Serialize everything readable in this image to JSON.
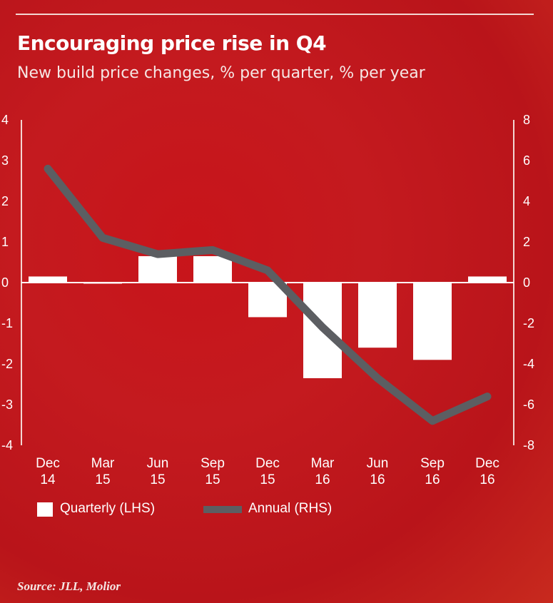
{
  "chart_data": {
    "type": "bar",
    "title": "Encouraging price rise in Q4",
    "subtitle": "New build price changes, % per quarter, % per year",
    "categories": [
      [
        "Dec",
        "14"
      ],
      [
        "Mar",
        "15"
      ],
      [
        "Jun",
        "15"
      ],
      [
        "Sep",
        "15"
      ],
      [
        "Dec",
        "15"
      ],
      [
        "Mar",
        "16"
      ],
      [
        "Jun",
        "16"
      ],
      [
        "Sep",
        "16"
      ],
      [
        "Dec",
        "16"
      ]
    ],
    "series": [
      {
        "name": "Quarterly (LHS)",
        "type": "bar",
        "axis": "left",
        "values": [
          0.15,
          0.0,
          0.65,
          0.65,
          -0.85,
          -2.35,
          -1.6,
          -1.9,
          0.15
        ]
      },
      {
        "name": "Annual (RHS)",
        "type": "line",
        "axis": "right",
        "values": [
          5.6,
          2.2,
          1.4,
          1.6,
          0.6,
          -2.2,
          -4.7,
          -6.8,
          -5.6
        ]
      }
    ],
    "y_left": {
      "range": [
        -4,
        4
      ],
      "ticks": [
        "4",
        "3",
        "2",
        "1",
        "0",
        "-1",
        "-2",
        "-3",
        "-4"
      ]
    },
    "y_right": {
      "range": [
        -8,
        8
      ],
      "ticks": [
        "8",
        "6",
        "4",
        "2",
        "0",
        "-2",
        "-4",
        "-6",
        "-8"
      ]
    },
    "source": "Source: JLL, Molior",
    "colors": {
      "background": "#c4161c",
      "bars": "#ffffff",
      "line": "#5c5e62",
      "text": "#ffffff"
    }
  }
}
